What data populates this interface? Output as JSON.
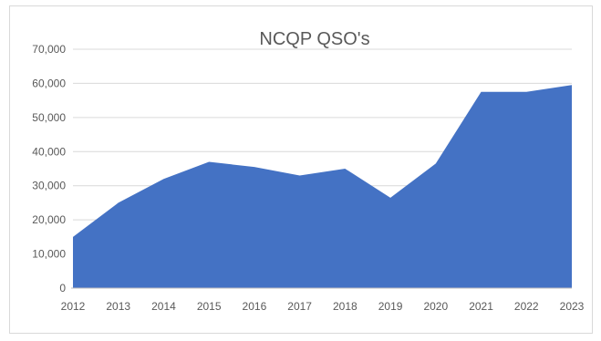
{
  "chart_data": {
    "type": "area",
    "title": "NCQP QSO's",
    "xlabel": "",
    "ylabel": "",
    "categories": [
      "2012",
      "2013",
      "2014",
      "2015",
      "2016",
      "2017",
      "2018",
      "2019",
      "2020",
      "2021",
      "2022",
      "2023"
    ],
    "series": [
      {
        "values": [
          15000,
          25000,
          32000,
          37000,
          35500,
          33000,
          35000,
          26500,
          36500,
          57500,
          57500,
          59500
        ],
        "color": "#4472c4"
      }
    ],
    "ylim": [
      0,
      70000
    ],
    "yticks": [
      0,
      10000,
      20000,
      30000,
      40000,
      50000,
      60000,
      70000
    ],
    "ytick_labels": [
      "0",
      "10,000",
      "20,000",
      "30,000",
      "40,000",
      "50,000",
      "60,000",
      "70,000"
    ],
    "grid": true,
    "legend": "none"
  }
}
